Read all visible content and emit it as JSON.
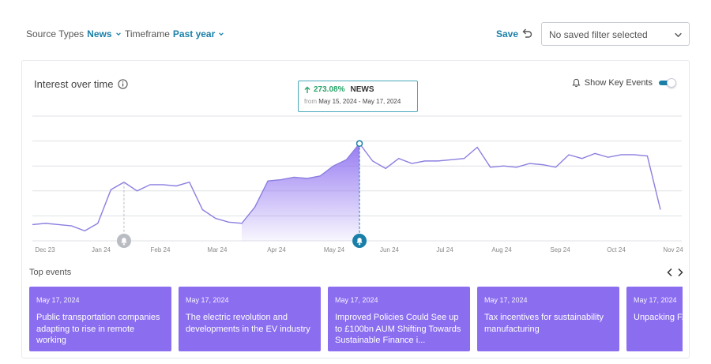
{
  "filters": {
    "source": {
      "label": "Source Types",
      "value": "News"
    },
    "timeframe": {
      "label": "Timeframe",
      "value": "Past year"
    },
    "save_label": "Save",
    "saved_filter": "No saved filter selected"
  },
  "card": {
    "title": "Interest over time",
    "key_events_label": "Show Key Events",
    "key_events_on": true
  },
  "tooltip": {
    "change": "273.08%",
    "source": "NEWS",
    "from_label": "from",
    "range": "May 15, 2024 - May 17, 2024"
  },
  "chart_data": {
    "type": "area",
    "x_tick_labels": [
      "Dec 23",
      "Jan 24",
      "Feb 24",
      "Mar 24",
      "Apr 24",
      "May 24",
      "Jun 24",
      "Jul 24",
      "Aug 24",
      "Sep 24",
      "Oct 24",
      "Nov 24"
    ],
    "values": [
      13,
      14,
      13,
      12,
      8,
      14,
      41,
      47,
      40,
      45,
      45,
      44,
      47,
      25,
      18,
      15,
      14,
      27,
      48,
      49,
      51,
      50,
      52,
      60,
      65,
      78,
      64,
      58,
      66,
      62,
      64,
      64,
      65,
      66,
      75,
      59,
      60,
      59,
      62,
      61,
      59,
      69,
      66,
      70,
      67,
      69,
      69,
      68,
      25
    ],
    "highlight_range": [
      16,
      25
    ],
    "selected_index": 25,
    "key_event_indices": [
      7,
      25
    ],
    "ylim": [
      0,
      100
    ],
    "grid": true,
    "colors": {
      "line": "#8b7fe0",
      "fill": "#8b6df0",
      "accent": "#1a7fa8",
      "muted": "#b9bcc2"
    }
  },
  "top_events": {
    "label": "Top events",
    "items": [
      {
        "date": "May 17, 2024",
        "title": "Public transportation companies adapting to rise in remote working"
      },
      {
        "date": "May 17, 2024",
        "title": "The electric revolution and developments in the EV industry"
      },
      {
        "date": "May 17, 2024",
        "title": "Improved Policies Could See up to £100bn AUM Shifting Towards Sustainable Finance i..."
      },
      {
        "date": "May 17, 2024",
        "title": "Tax incentives for sustainability manufacturing"
      },
      {
        "date": "May 17, 2024",
        "title": "Unpacking F... Transition Fi..."
      }
    ]
  }
}
